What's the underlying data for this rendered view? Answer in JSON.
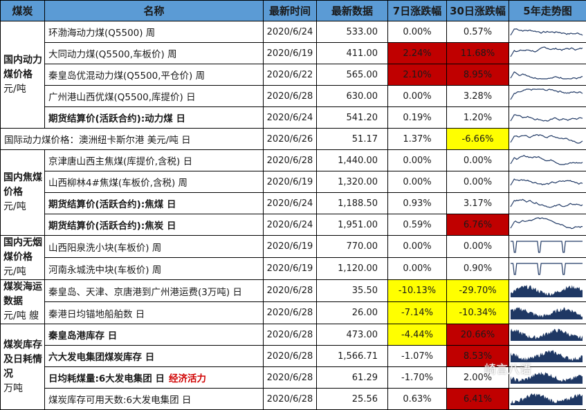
{
  "header": [
    "煤炭",
    "名称",
    "最新时间",
    "最新数据",
    "7日涨跌幅",
    "30日涨跌幅",
    "5年走势图"
  ],
  "colors": {
    "header_bg": "#5b9bd5",
    "up_highlight": "#c00000",
    "down_highlight": "#ffff00",
    "sparkline": "#1f3864",
    "extra_text": "#d00000"
  },
  "groups": [
    {
      "label": "国内动力煤价格",
      "unit": "元/吨",
      "rows": 5
    },
    {
      "label": "",
      "unit": "",
      "rows": 1
    },
    {
      "label": "国内焦煤价格",
      "unit": "元/吨",
      "rows": 4
    },
    {
      "label": "国内无烟煤价格",
      "unit": "元/吨",
      "rows": 2
    },
    {
      "label": "煤炭海运数据",
      "unit": "元/吨 艘",
      "rows": 2
    },
    {
      "label": "煤炭库存及日耗情况",
      "unit": "万吨",
      "rows": 4
    }
  ],
  "rows": [
    {
      "name": "环渤海动力煤(Q5500) 周",
      "bold": false,
      "time": "2020/6/24",
      "value": "533.00",
      "d7": "0.00%",
      "d7_hl": "",
      "d30": "0.57%",
      "d30_hl": "",
      "spark": "line"
    },
    {
      "name": "大同动力煤(Q5500,车板价) 周",
      "bold": false,
      "time": "2020/6/19",
      "value": "411.00",
      "d7": "2.24%",
      "d7_hl": "red",
      "d30": "11.68%",
      "d30_hl": "red",
      "spark": "line"
    },
    {
      "name": "秦皇岛优混动力煤(Q5500,平仓价) 周",
      "bold": false,
      "time": "2020/6/22",
      "value": "565.00",
      "d7": "2.10%",
      "d7_hl": "red",
      "d30": "8.95%",
      "d30_hl": "red",
      "spark": "line"
    },
    {
      "name": "广州港山西优煤(Q5500,库提价) 日",
      "bold": false,
      "time": "2020/6/28",
      "value": "630.00",
      "d7": "0.00%",
      "d7_hl": "",
      "d30": "3.28%",
      "d30_hl": "",
      "spark": "line"
    },
    {
      "name": "期货结算价(活跃合约):动力煤 日",
      "bold": true,
      "time": "2020/6/24",
      "value": "541.20",
      "d7": "0.19%",
      "d7_hl": "",
      "d30": "1.20%",
      "d30_hl": "",
      "spark": "line"
    },
    {
      "name": "国际动力煤价格：澳洲纽卡斯尔港 美元/吨 日",
      "bold": false,
      "time": "2020/6/26",
      "value": "51.17",
      "d7": "1.37%",
      "d7_hl": "",
      "d30": "-6.66%",
      "d30_hl": "yellow",
      "spark": "line",
      "span": true
    },
    {
      "name": "京津唐山西主焦煤(库提价,含税) 日",
      "bold": false,
      "time": "2020/6/28",
      "value": "1,440.00",
      "d7": "0.00%",
      "d7_hl": "",
      "d30": "0.00%",
      "d30_hl": "",
      "spark": "line"
    },
    {
      "name": "山西柳林4#焦煤(车板价,含税) 周",
      "bold": false,
      "time": "2020/6/19",
      "value": "1,320.00",
      "d7": "0.00%",
      "d7_hl": "",
      "d30": "0.00%",
      "d30_hl": "",
      "spark": "line"
    },
    {
      "name": "期货结算价(活跃合约):焦煤 日",
      "bold": true,
      "time": "2020/6/24",
      "value": "1,188.50",
      "d7": "0.93%",
      "d7_hl": "",
      "d30": "3.17%",
      "d30_hl": "",
      "spark": "line"
    },
    {
      "name": "期货结算价(活跃合约):焦炭 日",
      "bold": true,
      "time": "2020/6/24",
      "value": "1,951.00",
      "d7": "0.59%",
      "d7_hl": "",
      "d30": "6.76%",
      "d30_hl": "red",
      "spark": "line"
    },
    {
      "name": "山西阳泉洗小块(车板价) 周",
      "bold": false,
      "time": "2020/6/19",
      "value": "770.00",
      "d7": "0.00%",
      "d7_hl": "",
      "d30": "0.00%",
      "d30_hl": "",
      "spark": "step"
    },
    {
      "name": "河南永城洗中块(车板价) 周",
      "bold": false,
      "time": "2020/6/19",
      "value": "1,120.00",
      "d7": "0.00%",
      "d7_hl": "",
      "d30": "0.90%",
      "d30_hl": "",
      "spark": "step"
    },
    {
      "name": "秦皇岛、天津、京唐港到广州港运费(3万吨) 日",
      "bold": false,
      "time": "2020/6/28",
      "value": "35.50",
      "d7": "-10.13%",
      "d7_hl": "yellow",
      "d30": "-29.70%",
      "d30_hl": "yellow",
      "spark": "area"
    },
    {
      "name": "秦港日均锚地船舶数 日",
      "bold": false,
      "time": "2020/6/28",
      "value": "26.00",
      "d7": "-7.14%",
      "d7_hl": "yellow",
      "d30": "-10.34%",
      "d30_hl": "yellow",
      "spark": "area"
    },
    {
      "name": "秦皇岛港库存 日",
      "bold": true,
      "time": "2020/6/28",
      "value": "473.00",
      "d7": "-4.44%",
      "d7_hl": "yellow",
      "d30": "20.66%",
      "d30_hl": "red",
      "spark": "area"
    },
    {
      "name": "六大发电集团煤炭库存 日",
      "bold": true,
      "time": "2020/6/28",
      "value": "1,566.71",
      "d7": "-1.07%",
      "d7_hl": "",
      "d30": "8.53%",
      "d30_hl": "red",
      "spark": "area"
    },
    {
      "name": "日均耗煤量:6大发电集团 日",
      "extra": "经济活力",
      "bold": true,
      "time": "2020/6/28",
      "value": "61.29",
      "d7": "-1.70%",
      "d7_hl": "",
      "d30": "2.00%",
      "d30_hl": "",
      "spark": "area"
    },
    {
      "name": "煤炭库存可用天数:6大发电集团 日",
      "bold": false,
      "time": "2020/6/28",
      "value": "25.56",
      "d7": "0.63%",
      "d7_hl": "",
      "d30": "6.41%",
      "d30_hl": "red",
      "spark": "area"
    }
  ],
  "watermark": "崎言八语"
}
